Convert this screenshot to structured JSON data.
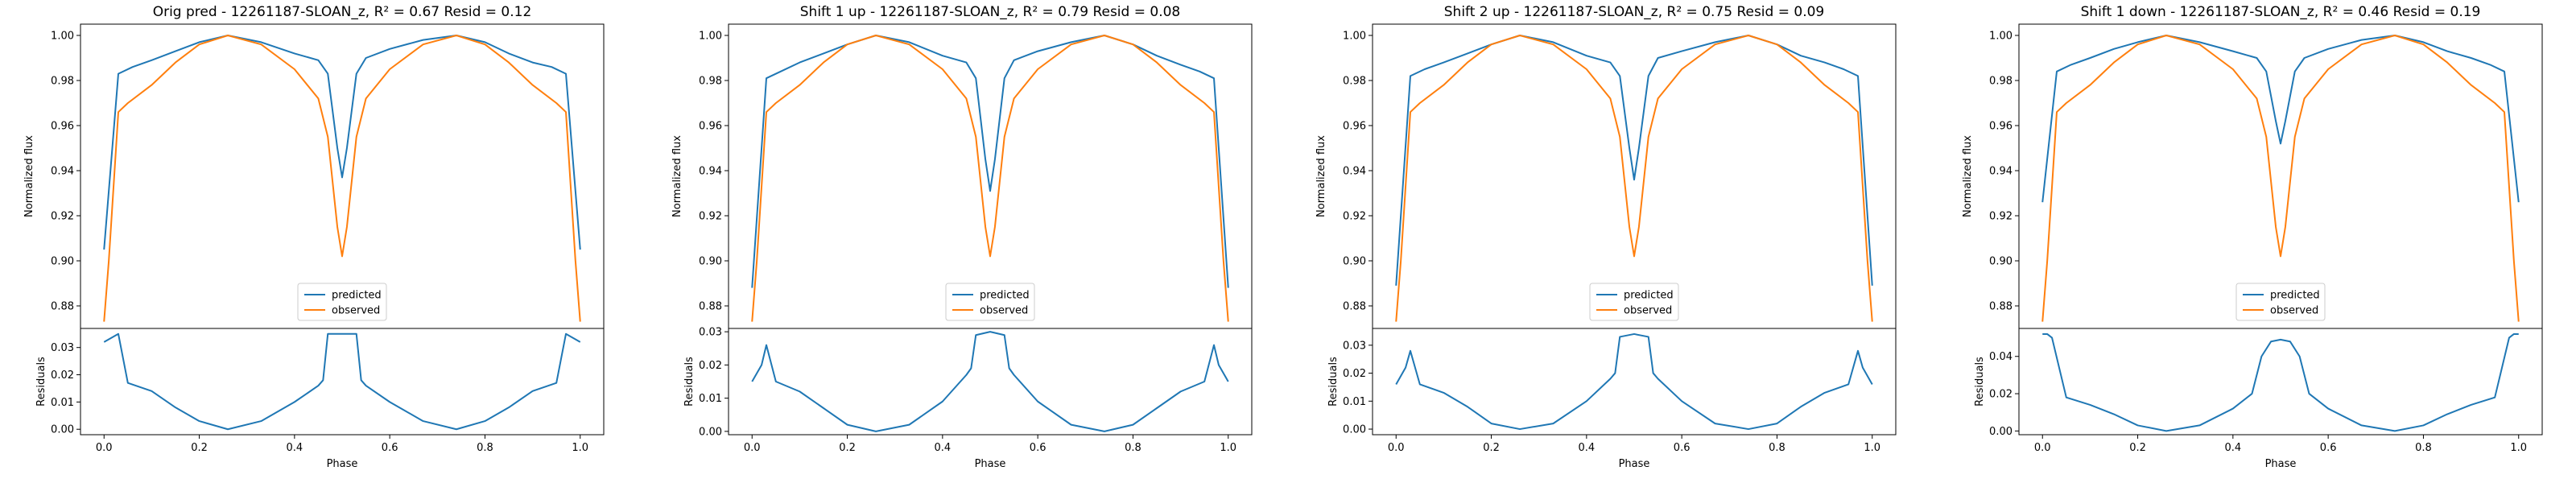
{
  "figure": {
    "background": "#ffffff"
  },
  "colors": {
    "predicted": "#1f77b4",
    "observed": "#ff7f0e",
    "residual": "#1f77b4"
  },
  "chart_data": [
    {
      "type": "line",
      "title": "Orig pred - 12261187-SLOAN_z, R² = 0.67 Resid = 0.12",
      "xlabel": "Phase",
      "ylabel": "Normalized flux",
      "ylim": [
        0.87,
        1.005
      ],
      "yticks": [
        "0.88",
        "0.90",
        "0.92",
        "0.94",
        "0.96",
        "0.98",
        "1.00"
      ],
      "xticks": [
        "0.0",
        "0.2",
        "0.4",
        "0.6",
        "0.8",
        "1.0"
      ],
      "legend": {
        "location": "lower center",
        "entries": [
          "predicted",
          "observed"
        ]
      },
      "series": [
        {
          "name": "predicted",
          "x": [
            0.0,
            0.03,
            0.06,
            0.1,
            0.15,
            0.2,
            0.26,
            0.33,
            0.4,
            0.45,
            0.47,
            0.49,
            0.5,
            0.51,
            0.53,
            0.55,
            0.6,
            0.67,
            0.74,
            0.8,
            0.85,
            0.9,
            0.94,
            0.97,
            1.0
          ],
          "values": [
            0.905,
            0.983,
            0.986,
            0.989,
            0.993,
            0.997,
            1.0,
            0.997,
            0.992,
            0.989,
            0.983,
            0.95,
            0.937,
            0.95,
            0.983,
            0.99,
            0.994,
            0.998,
            1.0,
            0.997,
            0.992,
            0.988,
            0.986,
            0.983,
            0.905
          ]
        },
        {
          "name": "observed",
          "x": [
            0.0,
            0.01,
            0.03,
            0.05,
            0.1,
            0.15,
            0.2,
            0.26,
            0.33,
            0.4,
            0.45,
            0.47,
            0.49,
            0.5,
            0.51,
            0.53,
            0.55,
            0.6,
            0.67,
            0.74,
            0.8,
            0.85,
            0.9,
            0.95,
            0.97,
            0.99,
            1.0
          ],
          "values": [
            0.873,
            0.9,
            0.966,
            0.97,
            0.978,
            0.988,
            0.996,
            1.0,
            0.996,
            0.985,
            0.972,
            0.955,
            0.915,
            0.902,
            0.915,
            0.955,
            0.972,
            0.985,
            0.996,
            1.0,
            0.996,
            0.988,
            0.978,
            0.97,
            0.966,
            0.9,
            0.873
          ]
        }
      ],
      "residuals": {
        "ylabel": "Residuals",
        "ylim": [
          -0.002,
          0.037
        ],
        "yticks": [
          "0.00",
          "0.01",
          "0.02",
          "0.03"
        ],
        "x": [
          0.0,
          0.02,
          0.03,
          0.05,
          0.1,
          0.15,
          0.2,
          0.26,
          0.33,
          0.4,
          0.45,
          0.46,
          0.47,
          0.5,
          0.53,
          0.54,
          0.55,
          0.6,
          0.67,
          0.74,
          0.8,
          0.85,
          0.9,
          0.95,
          0.97,
          0.98,
          1.0
        ],
        "values": [
          0.032,
          0.034,
          0.035,
          0.017,
          0.014,
          0.008,
          0.003,
          0.0,
          0.003,
          0.01,
          0.016,
          0.018,
          0.035,
          0.035,
          0.035,
          0.018,
          0.016,
          0.01,
          0.003,
          0.0,
          0.003,
          0.008,
          0.014,
          0.017,
          0.035,
          0.034,
          0.032
        ]
      }
    },
    {
      "type": "line",
      "title": "Shift 1 up - 12261187-SLOAN_z, R² = 0.79 Resid = 0.08",
      "xlabel": "Phase",
      "ylabel": "Normalized flux",
      "ylim": [
        0.87,
        1.005
      ],
      "yticks": [
        "0.88",
        "0.90",
        "0.92",
        "0.94",
        "0.96",
        "0.98",
        "1.00"
      ],
      "xticks": [
        "0.0",
        "0.2",
        "0.4",
        "0.6",
        "0.8",
        "1.0"
      ],
      "legend": {
        "location": "lower center",
        "entries": [
          "predicted",
          "observed"
        ]
      },
      "series": [
        {
          "name": "predicted",
          "x": [
            0.0,
            0.03,
            0.06,
            0.1,
            0.15,
            0.2,
            0.26,
            0.33,
            0.4,
            0.45,
            0.47,
            0.49,
            0.5,
            0.51,
            0.53,
            0.55,
            0.6,
            0.67,
            0.74,
            0.8,
            0.85,
            0.9,
            0.94,
            0.97,
            1.0
          ],
          "values": [
            0.888,
            0.981,
            0.984,
            0.988,
            0.992,
            0.996,
            1.0,
            0.997,
            0.991,
            0.988,
            0.981,
            0.945,
            0.931,
            0.945,
            0.981,
            0.989,
            0.993,
            0.997,
            1.0,
            0.996,
            0.991,
            0.987,
            0.984,
            0.981,
            0.888
          ]
        },
        {
          "name": "observed",
          "x": [
            0.0,
            0.01,
            0.03,
            0.05,
            0.1,
            0.15,
            0.2,
            0.26,
            0.33,
            0.4,
            0.45,
            0.47,
            0.49,
            0.5,
            0.51,
            0.53,
            0.55,
            0.6,
            0.67,
            0.74,
            0.8,
            0.85,
            0.9,
            0.95,
            0.97,
            0.99,
            1.0
          ],
          "values": [
            0.873,
            0.9,
            0.966,
            0.97,
            0.978,
            0.988,
            0.996,
            1.0,
            0.996,
            0.985,
            0.972,
            0.955,
            0.915,
            0.902,
            0.915,
            0.955,
            0.972,
            0.985,
            0.996,
            1.0,
            0.996,
            0.988,
            0.978,
            0.97,
            0.966,
            0.9,
            0.873
          ]
        }
      ],
      "residuals": {
        "ylabel": "Residuals",
        "ylim": [
          -0.001,
          0.031
        ],
        "yticks": [
          "0.00",
          "0.01",
          "0.02",
          "0.03"
        ],
        "x": [
          0.0,
          0.02,
          0.03,
          0.05,
          0.1,
          0.15,
          0.2,
          0.26,
          0.33,
          0.4,
          0.45,
          0.46,
          0.47,
          0.5,
          0.53,
          0.54,
          0.55,
          0.6,
          0.67,
          0.74,
          0.8,
          0.85,
          0.9,
          0.95,
          0.97,
          0.98,
          1.0
        ],
        "values": [
          0.015,
          0.02,
          0.026,
          0.015,
          0.012,
          0.007,
          0.002,
          0.0,
          0.002,
          0.009,
          0.017,
          0.019,
          0.029,
          0.03,
          0.029,
          0.019,
          0.017,
          0.009,
          0.002,
          0.0,
          0.002,
          0.007,
          0.012,
          0.015,
          0.026,
          0.02,
          0.015
        ]
      }
    },
    {
      "type": "line",
      "title": "Shift 2 up - 12261187-SLOAN_z, R² = 0.75 Resid = 0.09",
      "xlabel": "Phase",
      "ylabel": "Normalized flux",
      "ylim": [
        0.87,
        1.005
      ],
      "yticks": [
        "0.88",
        "0.90",
        "0.92",
        "0.94",
        "0.96",
        "0.98",
        "1.00"
      ],
      "xticks": [
        "0.0",
        "0.2",
        "0.4",
        "0.6",
        "0.8",
        "1.0"
      ],
      "legend": {
        "location": "lower center",
        "entries": [
          "predicted",
          "observed"
        ]
      },
      "series": [
        {
          "name": "predicted",
          "x": [
            0.0,
            0.03,
            0.06,
            0.1,
            0.15,
            0.2,
            0.26,
            0.33,
            0.4,
            0.45,
            0.47,
            0.49,
            0.5,
            0.51,
            0.53,
            0.55,
            0.6,
            0.67,
            0.74,
            0.8,
            0.85,
            0.9,
            0.94,
            0.97,
            1.0
          ],
          "values": [
            0.889,
            0.982,
            0.985,
            0.988,
            0.992,
            0.996,
            1.0,
            0.997,
            0.991,
            0.988,
            0.982,
            0.95,
            0.936,
            0.95,
            0.982,
            0.99,
            0.993,
            0.997,
            1.0,
            0.996,
            0.991,
            0.988,
            0.985,
            0.982,
            0.889
          ]
        },
        {
          "name": "observed",
          "x": [
            0.0,
            0.01,
            0.03,
            0.05,
            0.1,
            0.15,
            0.2,
            0.26,
            0.33,
            0.4,
            0.45,
            0.47,
            0.49,
            0.5,
            0.51,
            0.53,
            0.55,
            0.6,
            0.67,
            0.74,
            0.8,
            0.85,
            0.9,
            0.95,
            0.97,
            0.99,
            1.0
          ],
          "values": [
            0.873,
            0.9,
            0.966,
            0.97,
            0.978,
            0.988,
            0.996,
            1.0,
            0.996,
            0.985,
            0.972,
            0.955,
            0.915,
            0.902,
            0.915,
            0.955,
            0.972,
            0.985,
            0.996,
            1.0,
            0.996,
            0.988,
            0.978,
            0.97,
            0.966,
            0.9,
            0.873
          ]
        }
      ],
      "residuals": {
        "ylabel": "Residuals",
        "ylim": [
          -0.002,
          0.036
        ],
        "yticks": [
          "0.00",
          "0.01",
          "0.02",
          "0.03"
        ],
        "x": [
          0.0,
          0.02,
          0.03,
          0.05,
          0.1,
          0.15,
          0.2,
          0.26,
          0.33,
          0.4,
          0.45,
          0.46,
          0.47,
          0.5,
          0.53,
          0.54,
          0.55,
          0.6,
          0.67,
          0.74,
          0.8,
          0.85,
          0.9,
          0.95,
          0.97,
          0.98,
          1.0
        ],
        "values": [
          0.016,
          0.022,
          0.028,
          0.016,
          0.013,
          0.008,
          0.002,
          0.0,
          0.002,
          0.01,
          0.018,
          0.02,
          0.033,
          0.034,
          0.033,
          0.02,
          0.018,
          0.01,
          0.002,
          0.0,
          0.002,
          0.008,
          0.013,
          0.016,
          0.028,
          0.022,
          0.016
        ]
      }
    },
    {
      "type": "line",
      "title": "Shift 1 down - 12261187-SLOAN_z, R² = 0.46 Resid = 0.19",
      "xlabel": "Phase",
      "ylabel": "Normalized flux",
      "ylim": [
        0.87,
        1.005
      ],
      "yticks": [
        "0.88",
        "0.90",
        "0.92",
        "0.94",
        "0.96",
        "0.98",
        "1.00"
      ],
      "xticks": [
        "0.0",
        "0.2",
        "0.4",
        "0.6",
        "0.8",
        "1.0"
      ],
      "legend": {
        "location": "lower center",
        "entries": [
          "predicted",
          "observed"
        ]
      },
      "series": [
        {
          "name": "predicted",
          "x": [
            0.0,
            0.03,
            0.06,
            0.1,
            0.15,
            0.2,
            0.26,
            0.33,
            0.4,
            0.45,
            0.47,
            0.49,
            0.5,
            0.51,
            0.53,
            0.55,
            0.6,
            0.67,
            0.74,
            0.8,
            0.85,
            0.9,
            0.94,
            0.97,
            1.0
          ],
          "values": [
            0.926,
            0.984,
            0.987,
            0.99,
            0.994,
            0.997,
            1.0,
            0.997,
            0.993,
            0.99,
            0.984,
            0.962,
            0.952,
            0.962,
            0.984,
            0.99,
            0.994,
            0.998,
            1.0,
            0.997,
            0.993,
            0.99,
            0.987,
            0.984,
            0.926
          ]
        },
        {
          "name": "observed",
          "x": [
            0.0,
            0.01,
            0.03,
            0.05,
            0.1,
            0.15,
            0.2,
            0.26,
            0.33,
            0.4,
            0.45,
            0.47,
            0.49,
            0.5,
            0.51,
            0.53,
            0.55,
            0.6,
            0.67,
            0.74,
            0.8,
            0.85,
            0.9,
            0.95,
            0.97,
            0.99,
            1.0
          ],
          "values": [
            0.873,
            0.9,
            0.966,
            0.97,
            0.978,
            0.988,
            0.996,
            1.0,
            0.996,
            0.985,
            0.972,
            0.955,
            0.915,
            0.902,
            0.915,
            0.955,
            0.972,
            0.985,
            0.996,
            1.0,
            0.996,
            0.988,
            0.978,
            0.97,
            0.966,
            0.9,
            0.873
          ]
        }
      ],
      "residuals": {
        "ylabel": "Residuals",
        "ylim": [
          -0.002,
          0.055
        ],
        "yticks": [
          "0.00",
          "0.02",
          "0.04"
        ],
        "x": [
          0.0,
          0.01,
          0.02,
          0.05,
          0.1,
          0.15,
          0.2,
          0.26,
          0.33,
          0.4,
          0.44,
          0.46,
          0.48,
          0.5,
          0.52,
          0.54,
          0.56,
          0.6,
          0.67,
          0.74,
          0.8,
          0.85,
          0.9,
          0.95,
          0.98,
          0.99,
          1.0
        ],
        "values": [
          0.052,
          0.052,
          0.05,
          0.018,
          0.014,
          0.009,
          0.003,
          0.0,
          0.003,
          0.012,
          0.02,
          0.04,
          0.048,
          0.049,
          0.048,
          0.04,
          0.02,
          0.012,
          0.003,
          0.0,
          0.003,
          0.009,
          0.014,
          0.018,
          0.05,
          0.052,
          0.052
        ]
      }
    }
  ]
}
